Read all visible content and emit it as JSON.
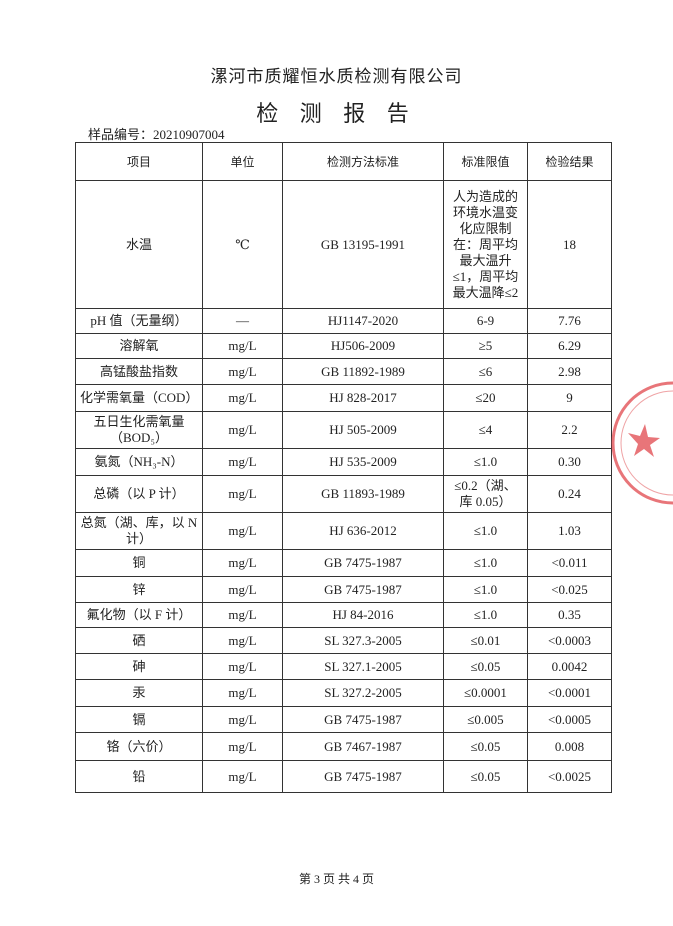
{
  "header": {
    "company": "漯河市质耀恒水质检测有限公司",
    "title": "检 测 报 告",
    "sample_no": "样品编号：20210907004"
  },
  "table": {
    "columns": [
      "项目",
      "单位",
      "检测方法标准",
      "标准限值",
      "检验结果"
    ],
    "rows": [
      [
        "水温",
        "℃",
        "GB 13195-1991",
        "人为造成的环境水温变化应限制在：周平均最大温升≤1，周平均最大温降≤2",
        "18"
      ],
      [
        "pH 值（无量纲）",
        "—",
        "HJ1147-2020",
        "6-9",
        "7.76"
      ],
      [
        "溶解氧",
        "mg/L",
        "HJ506-2009",
        "≥5",
        "6.29"
      ],
      [
        "高锰酸盐指数",
        "mg/L",
        "GB 11892-1989",
        "≤6",
        "2.98"
      ],
      [
        "化学需氧量（COD）",
        "mg/L",
        "HJ 828-2017",
        "≤20",
        "9"
      ],
      [
        "五日生化需氧量（BOD₅）",
        "mg/L",
        "HJ 505-2009",
        "≤4",
        "2.2"
      ],
      [
        "氨氮（NH₃-N）",
        "mg/L",
        "HJ 535-2009",
        "≤1.0",
        "0.30"
      ],
      [
        "总磷（以 P 计）",
        "mg/L",
        "GB 11893-1989",
        "≤0.2（湖、库 0.05）",
        "0.24"
      ],
      [
        "总氮（湖、库，以 N 计）",
        "mg/L",
        "HJ 636-2012",
        "≤1.0",
        "1.03"
      ],
      [
        "铜",
        "mg/L",
        "GB 7475-1987",
        "≤1.0",
        "<0.011"
      ],
      [
        "锌",
        "mg/L",
        "GB 7475-1987",
        "≤1.0",
        "<0.025"
      ],
      [
        "氟化物（以 F 计）",
        "mg/L",
        "HJ 84-2016",
        "≤1.0",
        "0.35"
      ],
      [
        "硒",
        "mg/L",
        "SL 327.3-2005",
        "≤0.01",
        "<0.0003"
      ],
      [
        "砷",
        "mg/L",
        "SL 327.1-2005",
        "≤0.05",
        "0.0042"
      ],
      [
        "汞",
        "mg/L",
        "SL 327.2-2005",
        "≤0.0001",
        "<0.0001"
      ],
      [
        "镉",
        "mg/L",
        "GB 7475-1987",
        "≤0.005",
        "<0.0005"
      ],
      [
        "铬（六价）",
        "mg/L",
        "GB 7467-1987",
        "≤0.05",
        "0.008"
      ],
      [
        "铅",
        "mg/L",
        "GB 7475-1987",
        "≤0.05",
        "<0.0025"
      ]
    ]
  },
  "footer": {
    "page": "第 3 页 共 4 页"
  }
}
